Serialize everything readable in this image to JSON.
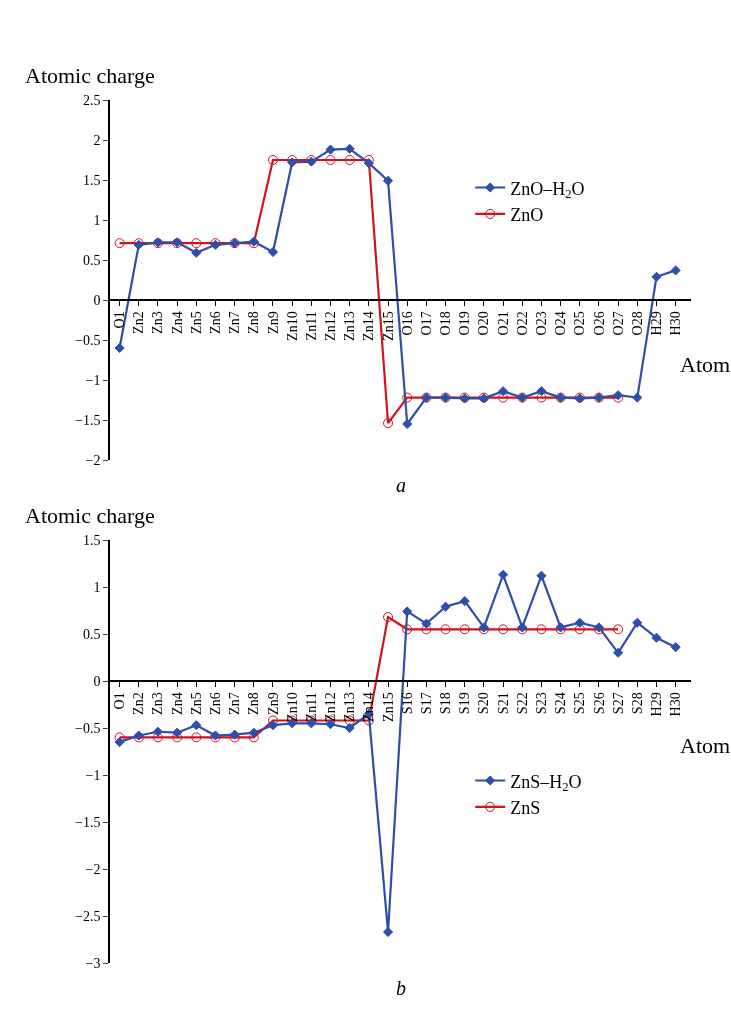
{
  "chart_data": [
    {
      "type": "line",
      "title": "a",
      "xlabel": "Atom",
      "ylabel": "Atomic charge",
      "categories": [
        "O1",
        "Zn2",
        "Zn3",
        "Zn4",
        "Zn5",
        "Zn6",
        "Zn7",
        "Zn8",
        "Zn9",
        "Zn10",
        "Zn11",
        "Zn12",
        "Zn13",
        "Zn14",
        "Zn15",
        "O16",
        "O17",
        "O18",
        "O19",
        "O20",
        "O21",
        "O22",
        "O23",
        "O24",
        "O25",
        "O26",
        "O27",
        "O28",
        "H29",
        "H30"
      ],
      "series": [
        {
          "name": "ZnO–H$_{2}$O",
          "color": "#2e4fa8",
          "marker": "diamond",
          "values": [
            -0.6,
            0.69,
            0.72,
            0.72,
            0.59,
            0.69,
            0.71,
            0.73,
            0.6,
            1.72,
            1.73,
            1.88,
            1.89,
            1.71,
            1.49,
            -1.55,
            -1.22,
            -1.22,
            -1.23,
            -1.23,
            -1.14,
            -1.22,
            -1.14,
            -1.22,
            -1.23,
            -1.22,
            -1.19,
            -1.22,
            0.29,
            0.37
          ]
        },
        {
          "name": "ZnO",
          "color": "#d0141e",
          "marker": "circle",
          "values": [
            0.71,
            0.71,
            0.71,
            0.71,
            0.71,
            0.71,
            0.71,
            0.71,
            1.75,
            1.75,
            1.75,
            1.75,
            1.75,
            1.75,
            -1.54,
            -1.22,
            -1.22,
            -1.22,
            -1.22,
            -1.22,
            -1.22,
            -1.22,
            -1.22,
            -1.22,
            -1.22,
            -1.22,
            -1.22,
            null,
            null,
            null
          ]
        }
      ],
      "ylim": [
        -2,
        2.5
      ],
      "yticks": [
        {
          "value": -2,
          "label": "−2"
        },
        {
          "value": -1.5,
          "label": "−1.5"
        },
        {
          "value": -1,
          "label": "−1"
        },
        {
          "value": -0.5,
          "label": "−0.5"
        },
        0,
        0.5,
        1,
        1.5,
        2,
        2.5
      ],
      "grid": false,
      "legend": "right"
    },
    {
      "type": "line",
      "title": "b",
      "xlabel": "Atom",
      "ylabel": "Atomic charge",
      "categories": [
        "O1",
        "Zn2",
        "Zn3",
        "Zn4",
        "Zn5",
        "Zn6",
        "Zn7",
        "Zn8",
        "Zn9",
        "Zn10",
        "Zn11",
        "Zn12",
        "Zn13",
        "Zn14",
        "Zn15",
        "S16",
        "S17",
        "S18",
        "S19",
        "S20",
        "S21",
        "S22",
        "S23",
        "S24",
        "S25",
        "S26",
        "S27",
        "S28",
        "H29",
        "H30"
      ],
      "series": [
        {
          "name": "ZnS–H$_{2}$O",
          "color": "#2e4fa8",
          "marker": "diamond",
          "values": [
            -0.65,
            -0.58,
            -0.54,
            -0.55,
            -0.47,
            -0.58,
            -0.57,
            -0.55,
            -0.47,
            -0.45,
            -0.45,
            -0.46,
            -0.5,
            -0.35,
            -2.67,
            0.74,
            0.61,
            0.79,
            0.85,
            0.57,
            1.13,
            0.57,
            1.12,
            0.57,
            0.62,
            0.57,
            0.3,
            0.62,
            0.46,
            0.36
          ]
        },
        {
          "name": "ZnS",
          "color": "#d0141e",
          "marker": "circle",
          "values": [
            -0.6,
            -0.6,
            -0.6,
            -0.6,
            -0.6,
            -0.6,
            -0.6,
            -0.6,
            -0.42,
            -0.42,
            -0.42,
            -0.42,
            -0.42,
            -0.42,
            0.68,
            0.55,
            0.55,
            0.55,
            0.55,
            0.55,
            0.55,
            0.55,
            0.55,
            0.55,
            0.55,
            0.55,
            0.55,
            null,
            null,
            null
          ]
        }
      ],
      "ylim": [
        -3,
        1.5
      ],
      "yticks": [
        {
          "value": -3,
          "label": "−3"
        },
        {
          "value": -2.5,
          "label": "−2.5"
        },
        {
          "value": -2,
          "label": "−2"
        },
        {
          "value": -1.5,
          "label": "−1.5"
        },
        {
          "value": -1,
          "label": "−1"
        },
        {
          "value": -0.5,
          "label": "−0.5"
        },
        0,
        0.5,
        1,
        1.5
      ],
      "grid": false,
      "legend": "lower right"
    }
  ]
}
